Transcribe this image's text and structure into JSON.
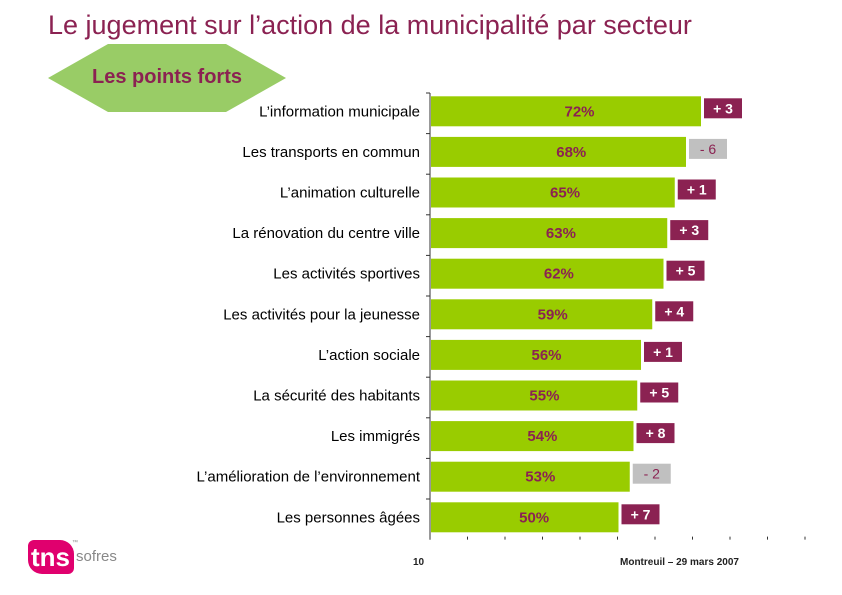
{
  "title": "Le jugement sur l’action de la municipalité par secteur",
  "banner_label": "Les points forts",
  "page_number": "10",
  "footer_text": "Montreuil – 29 mars 2007",
  "logo": {
    "brand": "tns",
    "sub": "sofres",
    "tm": "™"
  },
  "colors": {
    "title": "#8b2252",
    "bar": "#99cc00",
    "bar_label": "#8b2252",
    "badge_positive": "#8b2252",
    "badge_negative": "#c0c0c0",
    "banner": "#99cc66"
  },
  "chart_data": {
    "type": "bar",
    "orientation": "horizontal",
    "categories": [
      "L’information municipale",
      "Les transports en commun",
      "L’animation culturelle",
      "La rénovation du centre ville",
      "Les activités sportives",
      "Les activités pour la jeunesse",
      "L’action sociale",
      "La sécurité des habitants",
      "Les immigrés",
      "L’amélioration de l’environnement",
      "Les personnes âgées"
    ],
    "values": [
      72,
      68,
      65,
      63,
      62,
      59,
      56,
      55,
      54,
      53,
      50
    ],
    "value_labels": [
      "72%",
      "68%",
      "65%",
      "63%",
      "62%",
      "59%",
      "56%",
      "55%",
      "54%",
      "53%",
      "50%"
    ],
    "changes": [
      "+ 3",
      "- 6",
      "+ 1",
      "+ 3",
      "+ 5",
      "+ 4",
      "+ 1",
      "+ 5",
      "+ 8",
      "- 2",
      "+ 7"
    ],
    "change_sign": [
      "positive",
      "negative",
      "positive",
      "positive",
      "positive",
      "positive",
      "positive",
      "positive",
      "positive",
      "negative",
      "positive"
    ],
    "xlim": [
      0,
      100
    ]
  }
}
